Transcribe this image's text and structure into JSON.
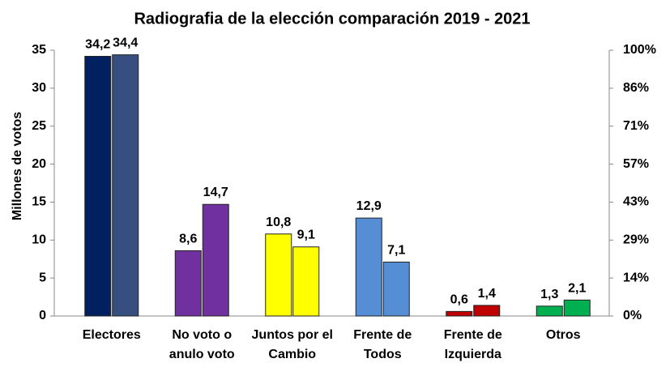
{
  "chart_data": {
    "type": "bar",
    "title": "Radiografia  de la elección comparación  2019 - 2021",
    "y_label": "Millones de votos",
    "categories": [
      [
        "Electores"
      ],
      [
        "No voto o",
        "anulo voto"
      ],
      [
        "Juntos por el",
        "Cambio"
      ],
      [
        "Frente de",
        "Todos"
      ],
      [
        "Frente de",
        "Izquierda"
      ],
      [
        "Otros"
      ]
    ],
    "series": [
      {
        "colors": [
          "#002060",
          "#7030a0",
          "#ffff00",
          "#558ed5",
          "#c00000",
          "#00b050"
        ],
        "values": [
          34.2,
          8.6,
          10.8,
          12.9,
          0.6,
          1.3
        ],
        "value_labels": [
          "34,2",
          "8,6",
          "10,8",
          "12,9",
          "0,6",
          "1,3"
        ]
      },
      {
        "colors": [
          "#374f80",
          "#7030a0",
          "#ffff00",
          "#558ed5",
          "#c00000",
          "#00b050"
        ],
        "values": [
          34.4,
          14.7,
          9.1,
          7.1,
          1.4,
          2.1
        ],
        "value_labels": [
          "34,4",
          "14,7",
          "9,1",
          "7,1",
          "1,4",
          "2,1"
        ]
      }
    ],
    "ylim": [
      0,
      35
    ],
    "yticks": [
      0,
      5,
      10,
      15,
      20,
      25,
      30,
      35
    ],
    "y2lim": [
      0,
      100
    ],
    "y2ticks": [
      {
        "value": 0,
        "label": "0%"
      },
      {
        "value": 14.29,
        "label": "14%"
      },
      {
        "value": 28.57,
        "label": "29%"
      },
      {
        "value": 42.86,
        "label": "43%"
      },
      {
        "value": 57.14,
        "label": "57%"
      },
      {
        "value": 71.43,
        "label": "71%"
      },
      {
        "value": 85.71,
        "label": "86%"
      },
      {
        "value": 100,
        "label": "100%"
      }
    ],
    "grid": false
  }
}
